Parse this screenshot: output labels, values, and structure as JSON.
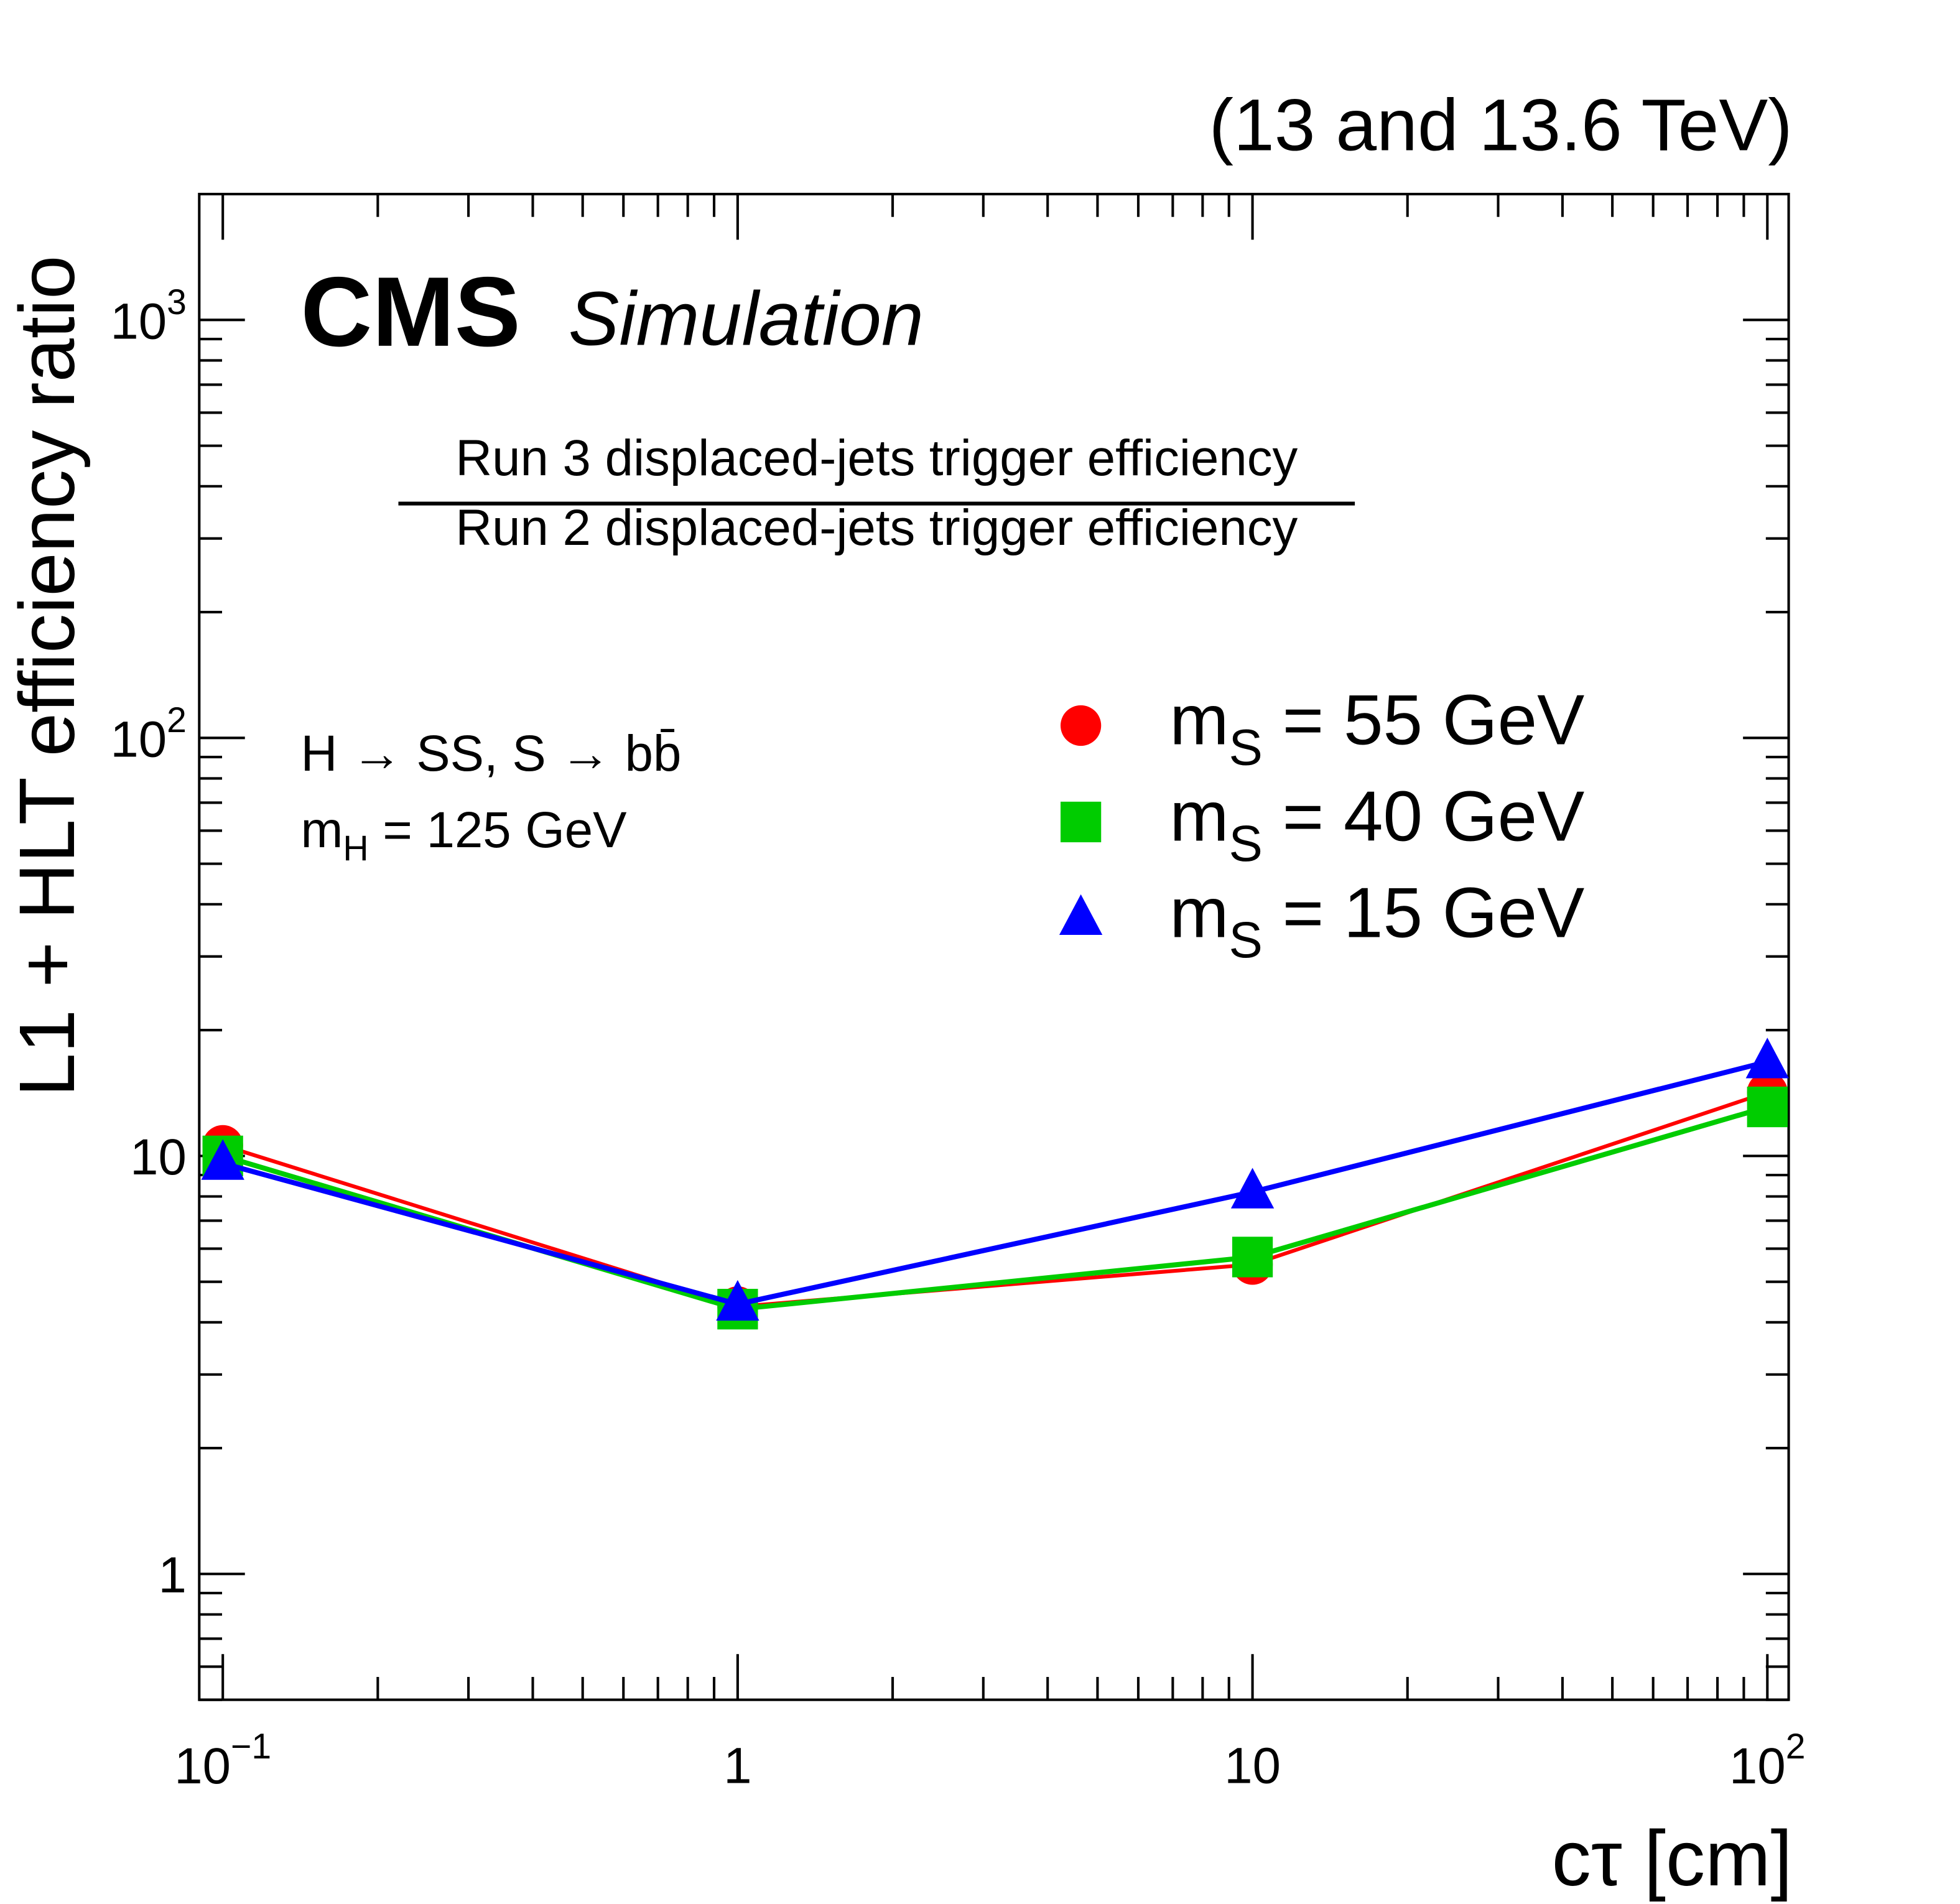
{
  "chart_data": {
    "type": "line",
    "energy_label": "(13 and 13.6 TeV)",
    "experiment": "CMS",
    "status": "Simulation",
    "ratio_numerator": "Run 3 displaced-jets trigger efficiency",
    "ratio_denominator": "Run 2 displaced-jets trigger efficiency",
    "process": "H → SS, S → bb̄",
    "mass_label": {
      "symbol": "m",
      "subscript": "H",
      "text": " = 125 GeV"
    },
    "x_label": "cτ [cm]",
    "y_label": "L1 + HLT efficiency ratio",
    "x": [
      0.1,
      1,
      10,
      100
    ],
    "series": [
      {
        "name": {
          "symbol": "m",
          "subscript": "S",
          "text": " = 55 GeV"
        },
        "color": "#ff0000",
        "marker": "circle",
        "values": [
          10.6,
          4.36,
          5.5,
          14.2
        ]
      },
      {
        "name": {
          "symbol": "m",
          "subscript": "S",
          "text": " = 40 GeV"
        },
        "color": "#00cc00",
        "marker": "square",
        "values": [
          10.0,
          4.3,
          5.73,
          13.1
        ]
      },
      {
        "name": {
          "symbol": "m",
          "subscript": "S",
          "text": " = 15 GeV"
        },
        "color": "#0000ff",
        "marker": "triangle",
        "values": [
          9.6,
          4.42,
          8.2,
          16.8
        ]
      }
    ],
    "x_log": true,
    "y_log": true,
    "xlim": [
      0.09,
      110
    ],
    "ylim": [
      0.5,
      2000
    ],
    "xticks": [
      {
        "value": 0.1,
        "label": "10",
        "exponent": "−1"
      },
      1,
      10,
      {
        "value": 100,
        "label": "10",
        "exponent": "2"
      }
    ],
    "yticks": [
      1,
      10,
      {
        "value": 100,
        "label": "10",
        "exponent": "2"
      },
      {
        "value": 1000,
        "label": "10",
        "exponent": "3"
      }
    ],
    "x_minor_ticks": [
      0.2,
      0.3,
      0.4,
      0.5,
      0.6,
      0.7,
      0.8,
      0.9,
      2,
      3,
      4,
      5,
      6,
      7,
      8,
      9,
      20,
      30,
      40,
      50,
      60,
      70,
      80,
      90
    ],
    "y_minor_ticks": [
      0.5,
      0.6,
      0.7,
      0.8,
      0.9,
      2,
      3,
      4,
      5,
      6,
      7,
      8,
      9,
      20,
      30,
      40,
      50,
      60,
      70,
      80,
      90,
      200,
      300,
      400,
      500,
      600,
      700,
      800,
      900,
      2000
    ]
  }
}
